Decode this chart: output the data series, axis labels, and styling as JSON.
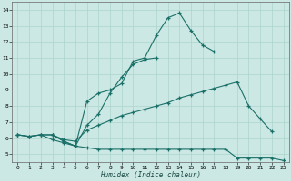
{
  "xlabel": "Humidex (Indice chaleur)",
  "xlim": [
    -0.5,
    23.5
  ],
  "ylim": [
    4.5,
    14.5
  ],
  "xticks": [
    0,
    1,
    2,
    3,
    4,
    5,
    6,
    7,
    8,
    9,
    10,
    11,
    12,
    13,
    14,
    15,
    16,
    17,
    18,
    19,
    20,
    21,
    22,
    23
  ],
  "yticks": [
    5,
    6,
    7,
    8,
    9,
    10,
    11,
    12,
    13,
    14
  ],
  "bg_color": "#cce8e4",
  "grid_color": "#aad4cc",
  "line_color": "#1a7068",
  "lines": [
    {
      "x": [
        0,
        1,
        2,
        3,
        4,
        5,
        6,
        7,
        8,
        9,
        10,
        11,
        12,
        13,
        14,
        15,
        16,
        17,
        18,
        19,
        20,
        21,
        22,
        23
      ],
      "y": [
        6.2,
        6.1,
        6.2,
        5.9,
        5.7,
        5.5,
        5.4,
        5.3,
        5.3,
        5.3,
        5.3,
        5.3,
        5.3,
        5.3,
        5.3,
        5.3,
        5.3,
        5.3,
        5.3,
        4.75,
        4.75,
        4.75,
        4.75,
        4.6
      ]
    },
    {
      "x": [
        0,
        1,
        2,
        3,
        4,
        5,
        6,
        7,
        8,
        9,
        10,
        11,
        12,
        13,
        14,
        15,
        16,
        17,
        18,
        19,
        20,
        21,
        22
      ],
      "y": [
        6.2,
        6.1,
        6.2,
        6.2,
        5.9,
        5.8,
        6.5,
        6.8,
        7.1,
        7.4,
        7.6,
        7.8,
        8.0,
        8.2,
        8.5,
        8.7,
        8.9,
        9.1,
        9.3,
        9.5,
        8.0,
        7.2,
        6.4
      ]
    },
    {
      "x": [
        0,
        1,
        2,
        3,
        4,
        5,
        6,
        7,
        8,
        9,
        10,
        11,
        12
      ],
      "y": [
        6.2,
        6.1,
        6.2,
        6.2,
        5.8,
        5.5,
        6.8,
        7.5,
        8.8,
        9.8,
        10.6,
        10.9,
        11.0
      ]
    },
    {
      "x": [
        3,
        4,
        5,
        6,
        7,
        8,
        9,
        10,
        11,
        12,
        13,
        14,
        15,
        16,
        17
      ],
      "y": [
        6.2,
        5.8,
        5.5,
        8.3,
        8.8,
        9.0,
        9.4,
        10.8,
        11.0,
        12.4,
        13.5,
        13.8,
        12.7,
        11.8,
        11.4
      ]
    }
  ],
  "figsize": [
    3.2,
    2.0
  ],
  "dpi": 100
}
